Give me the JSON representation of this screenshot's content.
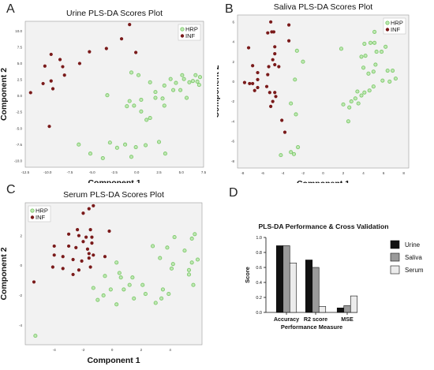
{
  "colors": {
    "hrp": "#7ec96b",
    "hrp_fill": "#bfe8b4",
    "inf": "#7a1a1a",
    "plot_bg": "#f2f2f2",
    "urine": "#111111",
    "saliva": "#9a9a9a",
    "serum": "#ececec"
  },
  "panels": {
    "a": "A",
    "b": "B",
    "c": "C",
    "d": "D"
  },
  "chart_data": [
    {
      "type": "scatter",
      "title": "Urine PLS-DA Scores Plot",
      "xlabel": "Component 1",
      "ylabel": "Component 2",
      "xlim": [
        -12.5,
        7.5
      ],
      "ylim": [
        -11,
        11.5
      ],
      "xticks": [
        -12.5,
        -10.0,
        -7.5,
        -5.0,
        -2.5,
        0.0,
        2.5,
        5.0,
        7.5
      ],
      "xtick_labels": [
        "-12.5",
        "-10.0",
        "-7.5",
        "-5.0",
        "-2.5",
        "0.0",
        "2.5",
        "5.0",
        "7.5"
      ],
      "yticks": [
        -10,
        -7.5,
        -5,
        -2.5,
        0,
        2.5,
        5,
        7.5,
        10
      ],
      "ytick_labels": [
        "-10.0",
        "-7.5",
        "-5.0",
        "-2.5",
        "0.0",
        "2.5",
        "5.0",
        "7.5",
        "10.0"
      ],
      "legend": [
        "HRP",
        "INF"
      ],
      "legend_position": "top-right",
      "series": [
        {
          "name": "HRP",
          "points": [
            [
              -0.6,
              3.6
            ],
            [
              -3.3,
              0.1
            ],
            [
              -0.8,
              -0.8
            ],
            [
              -1.1,
              -1.6
            ],
            [
              0.5,
              -0.6
            ],
            [
              0.5,
              -2.4
            ],
            [
              1.1,
              -3.7
            ],
            [
              1.5,
              -3.4
            ],
            [
              1.5,
              2.1
            ],
            [
              2.1,
              -0.3
            ],
            [
              2.1,
              0.6
            ],
            [
              2.9,
              -0.4
            ],
            [
              3.1,
              -1.5
            ],
            [
              3.1,
              1.6
            ],
            [
              3.8,
              2.6
            ],
            [
              4.1,
              0.9
            ],
            [
              4.4,
              2.0
            ],
            [
              4.9,
              0.9
            ],
            [
              5.1,
              3.2
            ],
            [
              5.3,
              2.6
            ],
            [
              5.6,
              -0.3
            ],
            [
              5.9,
              2.1
            ],
            [
              6.3,
              2.3
            ],
            [
              6.6,
              3.2
            ],
            [
              6.8,
              2.2
            ],
            [
              7.0,
              1.7
            ],
            [
              7.1,
              2.9
            ],
            [
              0.2,
              3.2
            ],
            [
              -0.3,
              -1.5
            ],
            [
              -6.5,
              -7.5
            ],
            [
              -5.2,
              -8.9
            ],
            [
              -3.0,
              -7.2
            ],
            [
              -2.2,
              -8.0
            ],
            [
              -1.3,
              -7.5
            ],
            [
              -0.1,
              -7.9
            ],
            [
              -3.8,
              -9.6
            ],
            [
              -0.6,
              -9.4
            ],
            [
              1.0,
              -7.6
            ],
            [
              2.5,
              -7.1
            ],
            [
              3.2,
              -8.9
            ]
          ]
        },
        {
          "name": "INF",
          "points": [
            [
              -9.6,
              6.4
            ],
            [
              -10.3,
              4.6
            ],
            [
              -8.6,
              5.6
            ],
            [
              -8.3,
              4.5
            ],
            [
              -8.1,
              3.2
            ],
            [
              -10.5,
              1.9
            ],
            [
              -11.9,
              0.5
            ],
            [
              -9.8,
              -4.7
            ],
            [
              -6.4,
              5.0
            ],
            [
              -5.3,
              6.8
            ],
            [
              -3.4,
              7.3
            ],
            [
              -1.7,
              8.8
            ],
            [
              -0.8,
              11.0
            ],
            [
              -0.1,
              6.7
            ],
            [
              -9.6,
              2.3
            ],
            [
              -9.4,
              1.1
            ]
          ]
        }
      ]
    },
    {
      "type": "scatter",
      "title": "Saliva PLS-DA Scores Plot",
      "xlabel": "Component 1",
      "ylabel": "Component 2",
      "xlim": [
        -8.5,
        8.5
      ],
      "ylim": [
        -8.7,
        6.7
      ],
      "xticks": [
        -8,
        -6,
        -4,
        -2,
        0,
        2,
        4,
        6,
        8
      ],
      "xtick_labels": [
        "-8",
        "-6",
        "-4",
        "-2",
        "0",
        "2",
        "4",
        "6",
        "8"
      ],
      "yticks": [
        -8,
        -6,
        -4,
        -2,
        0,
        2,
        4,
        6
      ],
      "ytick_labels": [
        "-8",
        "-6",
        "-4",
        "-2",
        "0",
        "2",
        "4",
        "6"
      ],
      "legend": [
        "HRP",
        "INF"
      ],
      "legend_position": "top-right",
      "series": [
        {
          "name": "HRP",
          "points": [
            [
              1.8,
              3.3
            ],
            [
              5.3,
              3.0
            ],
            [
              5.8,
              3.0
            ],
            [
              6.2,
              3.5
            ],
            [
              6.4,
              5.7
            ],
            [
              6.8,
              5.3
            ],
            [
              5.1,
              3.9
            ],
            [
              4.7,
              3.9
            ],
            [
              4.1,
              3.8
            ],
            [
              4.2,
              2.6
            ],
            [
              3.8,
              2.5
            ],
            [
              4.0,
              1.4
            ],
            [
              4.5,
              0.8
            ],
            [
              5.0,
              1.0
            ],
            [
              5.2,
              1.7
            ],
            [
              6.4,
              1.1
            ],
            [
              6.9,
              1.1
            ],
            [
              5.9,
              0.1
            ],
            [
              6.6,
              0.0
            ],
            [
              7.2,
              0.3
            ],
            [
              5.0,
              -0.5
            ],
            [
              4.1,
              -1.1
            ],
            [
              3.4,
              -1.0
            ],
            [
              3.2,
              -1.7
            ],
            [
              2.8,
              -2.0
            ],
            [
              2.6,
              -2.6
            ],
            [
              3.5,
              -2.2
            ],
            [
              2.0,
              -2.3
            ],
            [
              2.5,
              -4.0
            ],
            [
              4.6,
              -0.9
            ],
            [
              5.1,
              5.0
            ],
            [
              3.8,
              -1.4
            ],
            [
              -2.9,
              -7.3
            ],
            [
              -3.2,
              -7.1
            ],
            [
              -4.2,
              -7.4
            ],
            [
              -2.5,
              -6.6
            ],
            [
              -2.6,
              3.1
            ],
            [
              -2.0,
              2.0
            ],
            [
              -2.8,
              0.2
            ],
            [
              -2.7,
              -3.3
            ],
            [
              -3.2,
              -2.2
            ]
          ]
        },
        {
          "name": "INF",
          "points": [
            [
              -5.2,
              6.0
            ],
            [
              -5.1,
              5.0
            ],
            [
              -5.5,
              4.9
            ],
            [
              -4.9,
              5.0
            ],
            [
              -3.4,
              5.7
            ],
            [
              -3.4,
              4.1
            ],
            [
              -4.8,
              3.5
            ],
            [
              -4.8,
              2.8
            ],
            [
              -7.4,
              3.4
            ],
            [
              -5.0,
              2.2
            ],
            [
              -4.8,
              1.7
            ],
            [
              -4.4,
              1.5
            ],
            [
              -5.4,
              1.5
            ],
            [
              -5.5,
              0.7
            ],
            [
              -7.0,
              1.6
            ],
            [
              -6.5,
              0.9
            ],
            [
              -6.5,
              0.2
            ],
            [
              -7.8,
              -0.1
            ],
            [
              -7.3,
              -0.2
            ],
            [
              -7.0,
              -0.2
            ],
            [
              -6.5,
              -0.6
            ],
            [
              -5.6,
              -0.5
            ],
            [
              -5.3,
              -1.1
            ],
            [
              -4.8,
              -1.1
            ],
            [
              -5.0,
              -2.0
            ],
            [
              -5.2,
              -2.5
            ],
            [
              -4.1,
              -3.9
            ],
            [
              -3.8,
              -5.1
            ],
            [
              -4.7,
              -1.5
            ],
            [
              -6.8,
              -0.9
            ]
          ]
        }
      ]
    },
    {
      "type": "scatter",
      "title": "Serum PLS-DA Scores Plot",
      "xlabel": "Component 1",
      "ylabel": "Component 2",
      "xlim": [
        -6,
        6.2
      ],
      "ylim": [
        -5.3,
        4.2
      ],
      "xticks": [
        -4,
        -2,
        0,
        2,
        4
      ],
      "xtick_labels": [
        "-4",
        "-2",
        "0",
        "2",
        "4"
      ],
      "yticks": [
        -4,
        -2,
        0,
        2
      ],
      "ytick_labels": [
        "-4",
        "-2",
        "0",
        "2"
      ],
      "legend": [
        "HRP",
        "INF"
      ],
      "legend_position": "top-left",
      "series": [
        {
          "name": "HRP",
          "points": [
            [
              2.8,
              1.3
            ],
            [
              3.8,
              1.2
            ],
            [
              4.3,
              1.9
            ],
            [
              5.5,
              1.8
            ],
            [
              5.7,
              2.1
            ],
            [
              5.0,
              1.0
            ],
            [
              3.3,
              0.5
            ],
            [
              4.2,
              0.1
            ],
            [
              5.5,
              0.2
            ],
            [
              5.9,
              0.4
            ],
            [
              4.1,
              -0.2
            ],
            [
              5.3,
              -0.6
            ],
            [
              1.4,
              -0.8
            ],
            [
              0.6,
              -0.8
            ],
            [
              1.2,
              -1.3
            ],
            [
              2.1,
              -1.3
            ],
            [
              3.5,
              -1.6
            ],
            [
              3.9,
              -1.9
            ],
            [
              5.6,
              -1.3
            ],
            [
              5.3,
              -0.3
            ],
            [
              0.3,
              0.2
            ],
            [
              0.5,
              -0.5
            ],
            [
              -0.5,
              -0.7
            ],
            [
              -0.1,
              -1.6
            ],
            [
              0.8,
              -1.6
            ],
            [
              -1.0,
              -2.3
            ],
            [
              -0.6,
              -2.0
            ],
            [
              -1.3,
              -1.5
            ],
            [
              0.3,
              -2.6
            ],
            [
              1.5,
              -2.2
            ],
            [
              2.3,
              -1.9
            ],
            [
              3.4,
              -2.2
            ],
            [
              3.0,
              -2.5
            ],
            [
              -5.3,
              -4.7
            ]
          ]
        },
        {
          "name": "INF",
          "points": [
            [
              -1.6,
              3.8
            ],
            [
              -1.3,
              4.0
            ],
            [
              -2.0,
              3.5
            ],
            [
              -3.0,
              2.1
            ],
            [
              -2.4,
              2.4
            ],
            [
              -2.3,
              2.0
            ],
            [
              -1.8,
              1.9
            ],
            [
              -1.5,
              2.4
            ],
            [
              -1.4,
              1.5
            ],
            [
              -1.7,
              1.1
            ],
            [
              -2.5,
              1.2
            ],
            [
              -3.0,
              1.3
            ],
            [
              -4.0,
              1.3
            ],
            [
              -4.0,
              0.7
            ],
            [
              -3.4,
              0.6
            ],
            [
              -2.7,
              0.4
            ],
            [
              -2.1,
              0.3
            ],
            [
              -1.6,
              0.8
            ],
            [
              -1.3,
              0.7
            ],
            [
              -1.6,
              0.5
            ],
            [
              -4.1,
              -0.1
            ],
            [
              -3.4,
              -0.2
            ],
            [
              -2.7,
              -0.6
            ],
            [
              -2.3,
              -0.3
            ],
            [
              -0.5,
              0.6
            ],
            [
              -1.5,
              -0.1
            ],
            [
              -0.2,
              2.3
            ],
            [
              -5.4,
              -1.1
            ],
            [
              -1.4,
              1.9
            ],
            [
              -2.0,
              1.6
            ]
          ]
        }
      ]
    },
    {
      "type": "bar",
      "title": "PLS-DA Performance & Cross Validation",
      "xlabel": "Performance Measure",
      "ylabel": "Score",
      "ylim": [
        0,
        1.0
      ],
      "yticks": [
        0.0,
        0.2,
        0.4,
        0.6,
        0.8,
        1.0
      ],
      "ytick_labels": [
        "0.0",
        "0.2",
        "0.4",
        "0.6",
        "0.8",
        "1.0"
      ],
      "categories": [
        "Accuracy",
        "R2 score",
        "MSE"
      ],
      "legend_position": "right",
      "series": [
        {
          "name": "Urine",
          "values": [
            0.89,
            0.7,
            0.06
          ]
        },
        {
          "name": "Saliva",
          "values": [
            0.89,
            0.6,
            0.09
          ]
        },
        {
          "name": "Serum",
          "values": [
            0.66,
            0.08,
            0.22
          ]
        }
      ]
    }
  ]
}
